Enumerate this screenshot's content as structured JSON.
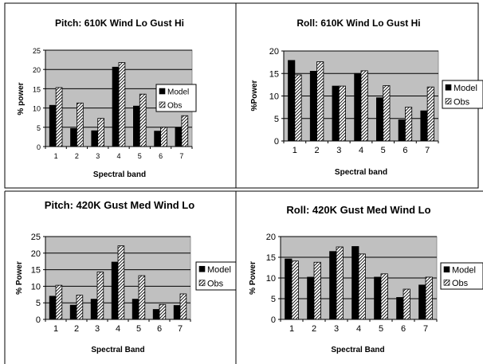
{
  "colors": {
    "plot_bg": "#c0c0c0",
    "model_fill": "#000000",
    "obs_fill": "hatched-white",
    "frame": "#000000"
  },
  "chart_data": [
    {
      "type": "bar",
      "title": "Pitch: 610K Wind Lo Gust Hi",
      "xlabel": "Spectral band",
      "ylabel": "% power",
      "categories": [
        "1",
        "2",
        "3",
        "4",
        "5",
        "6",
        "7"
      ],
      "ylim": [
        0,
        25
      ],
      "yticks": [
        "0",
        "5",
        "10",
        "15",
        "20",
        "25"
      ],
      "grid": true,
      "legend_position": "right",
      "series": [
        {
          "name": "Model",
          "values": [
            10.7,
            4.7,
            4.1,
            20.6,
            10.5,
            4.0,
            5.0
          ]
        },
        {
          "name": "Obs",
          "values": [
            15.3,
            11.3,
            7.3,
            21.8,
            13.6,
            5.0,
            8.0
          ]
        }
      ]
    },
    {
      "type": "bar",
      "title": "Roll: 610K Wind Lo Gust Hi",
      "xlabel": "Spectral band",
      "ylabel": "%Power",
      "categories": [
        "1",
        "2",
        "3",
        "4",
        "5",
        "6",
        "7"
      ],
      "ylim": [
        0,
        20
      ],
      "yticks": [
        "0",
        "5",
        "10",
        "15",
        "20"
      ],
      "grid": true,
      "legend_position": "right",
      "series": [
        {
          "name": "Model",
          "values": [
            17.9,
            15.5,
            12.2,
            15.0,
            9.6,
            4.7,
            6.7
          ]
        },
        {
          "name": "Obs",
          "values": [
            14.7,
            17.6,
            12.2,
            15.6,
            12.3,
            7.5,
            12.0
          ]
        }
      ]
    },
    {
      "type": "bar",
      "title": "Pitch: 420K Gust Med Wind Lo",
      "xlabel": "Spectral Band",
      "ylabel": "% Power",
      "categories": [
        "1",
        "2",
        "3",
        "4",
        "5",
        "6",
        "7"
      ],
      "ylim": [
        0,
        25
      ],
      "yticks": [
        "0",
        "5",
        "10",
        "15",
        "20",
        "25"
      ],
      "grid": true,
      "legend_position": "right",
      "series": [
        {
          "name": "Model",
          "values": [
            7.0,
            4.3,
            6.1,
            17.3,
            6.1,
            3.0,
            4.2
          ]
        },
        {
          "name": "Obs",
          "values": [
            10.3,
            7.3,
            14.3,
            22.2,
            13.2,
            4.5,
            7.7
          ]
        }
      ]
    },
    {
      "type": "bar",
      "title": "Roll: 420K Gust Med Wind Lo",
      "xlabel": "Spectral Band",
      "ylabel": "% Power",
      "categories": [
        "1",
        "2",
        "3",
        "4",
        "5",
        "6",
        "7"
      ],
      "ylim": [
        0,
        20
      ],
      "yticks": [
        "0",
        "5",
        "10",
        "15",
        "20"
      ],
      "grid": true,
      "legend_position": "right",
      "series": [
        {
          "name": "Model",
          "values": [
            14.6,
            10.2,
            16.4,
            17.6,
            10.2,
            5.3,
            8.3
          ]
        },
        {
          "name": "Obs",
          "values": [
            14.1,
            13.8,
            17.5,
            15.8,
            11.0,
            7.3,
            10.2
          ]
        }
      ]
    }
  ]
}
